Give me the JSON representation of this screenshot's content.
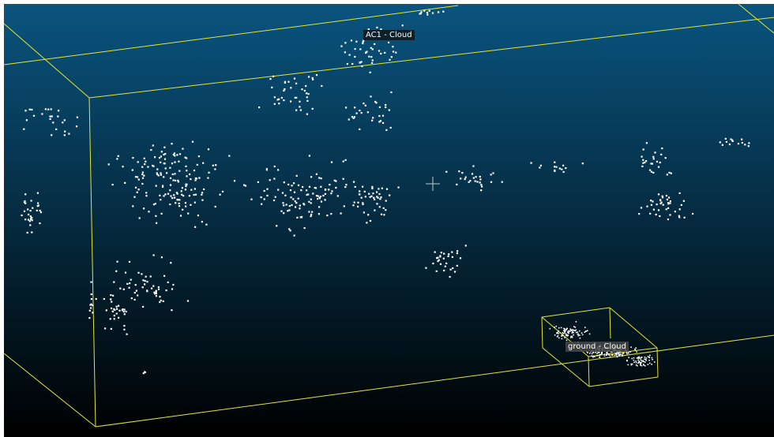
{
  "viewer": {
    "background_top": "#0a5580",
    "background_bottom": "#000000",
    "bbox_color": "#e6e62e",
    "point_color": "#ffffff",
    "crosshair_color": "#c8c8c8"
  },
  "clouds": [
    {
      "id": "ac1",
      "label": "AC1 - Cloud"
    },
    {
      "id": "ground",
      "label": "ground - Cloud"
    }
  ]
}
